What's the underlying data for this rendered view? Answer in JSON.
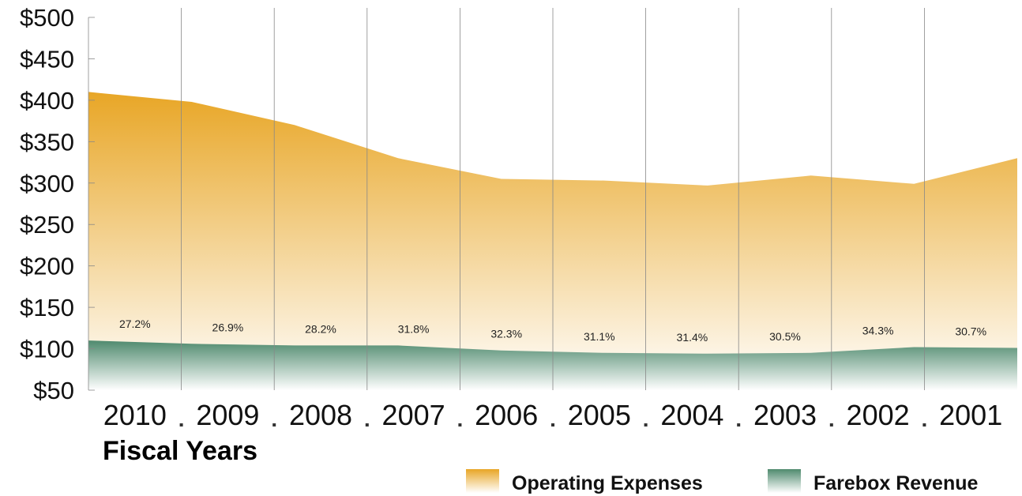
{
  "chart_data": {
    "type": "area",
    "x_label": "Fiscal Years",
    "categories": [
      "2010",
      "2009",
      "2008",
      "2007",
      "2006",
      "2005",
      "2004",
      "2003",
      "2002",
      "2001"
    ],
    "series": [
      {
        "name": "Operating Expenses",
        "color": "#e8a626",
        "values": [
          410,
          398,
          370,
          330,
          305,
          303,
          297,
          309,
          299,
          330
        ]
      },
      {
        "name": "Farebox Revenue",
        "color": "#4f8a6e",
        "values": [
          110,
          106,
          104,
          104,
          98,
          95,
          94,
          95,
          102,
          101
        ]
      }
    ],
    "annotations": [
      "27.2%",
      "26.9%",
      "28.2%",
      "31.8%",
      "32.3%",
      "31.1%",
      "31.4%",
      "30.5%",
      "34.3%",
      "30.7%"
    ],
    "ylim": [
      50,
      500
    ],
    "yticks": [
      {
        "value": 500,
        "label": "$500"
      },
      {
        "value": 450,
        "label": "$450"
      },
      {
        "value": 400,
        "label": "$400"
      },
      {
        "value": 350,
        "label": "$350"
      },
      {
        "value": 300,
        "label": "$300"
      },
      {
        "value": 250,
        "label": "$250"
      },
      {
        "value": 200,
        "label": "$200"
      },
      {
        "value": 150,
        "label": "$150"
      },
      {
        "value": 100,
        "label": "$100"
      },
      {
        "value": 50,
        "label": "$50"
      }
    ],
    "grid": true,
    "legend": "bottom-right"
  }
}
